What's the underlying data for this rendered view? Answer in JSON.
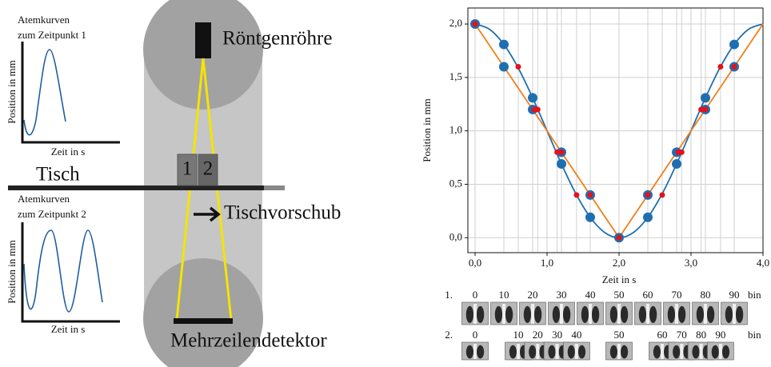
{
  "diagram": {
    "tube": "Röntgenröhre",
    "detector": "Mehrzeilendetektor",
    "table": "Tisch",
    "feed": "Tischvorschub",
    "slice1": "1",
    "slice2": "2",
    "plot1": {
      "title": [
        "Atemkurven",
        "zum Zeitpunkt 1"
      ],
      "ylabel": "Position in mm",
      "xlabel": "Zeit in s"
    },
    "plot2": {
      "title": [
        "Atemkurven",
        "zum Zeitpunkt 2"
      ],
      "ylabel": "Position in mm",
      "xlabel": "Zeit in s"
    }
  },
  "chart_data": {
    "type": "line",
    "xlabel": "Zeit in s",
    "ylabel": "Position in mm",
    "xlim": [
      -0.1,
      4.0
    ],
    "ylim": [
      -0.14,
      2.15
    ],
    "xticks": [
      {
        "value": 0,
        "label": "0,0"
      },
      {
        "value": 1,
        "label": "1,0"
      },
      {
        "value": 2,
        "label": "2,0"
      },
      {
        "value": 3,
        "label": "3,0"
      },
      {
        "value": 4,
        "label": "4,0"
      }
    ],
    "yticks": [
      {
        "value": 0,
        "label": "0,0"
      },
      {
        "value": 0.5,
        "label": "0,5"
      },
      {
        "value": 1,
        "label": "1,0"
      },
      {
        "value": 1.5,
        "label": "1,5"
      },
      {
        "value": 2,
        "label": "2,0"
      }
    ],
    "grid": true,
    "series": [
      {
        "kind": "curve",
        "color": "#1f6fb0",
        "x": [
          0,
          0.2,
          0.4,
          0.6,
          0.8,
          1.0,
          1.2,
          1.4,
          1.6,
          1.8,
          2.0,
          2.2,
          2.4,
          2.6,
          2.8,
          3.0,
          3.2,
          3.4,
          3.6,
          3.8,
          4.0
        ],
        "values": [
          2,
          1.951,
          1.809,
          1.588,
          1.309,
          1,
          0.691,
          0.412,
          0.191,
          0.049,
          0,
          0.049,
          0.191,
          0.412,
          0.691,
          1,
          1.309,
          1.588,
          1.809,
          1.951,
          2
        ]
      },
      {
        "kind": "line",
        "color": "#f07f1a",
        "x": [
          0,
          2,
          4
        ],
        "values": [
          2,
          0,
          2
        ]
      },
      {
        "kind": "points",
        "color": "#1f6fb0",
        "size": 6,
        "x": [
          0,
          0.4,
          0.8,
          1.2,
          1.6,
          2.0,
          2.4,
          2.8,
          3.2,
          3.6
        ],
        "values": [
          2,
          1.809,
          1.309,
          0.691,
          0.191,
          0,
          0.191,
          0.691,
          1.309,
          1.809
        ]
      },
      {
        "kind": "points",
        "color": "#1f6fb0",
        "size": 6,
        "x": [
          0.4,
          0.8,
          1.2,
          1.6,
          2.4,
          2.8,
          3.2,
          3.6
        ],
        "values": [
          1.6,
          1.2,
          0.8,
          0.4,
          0.4,
          0.8,
          1.2,
          1.6
        ]
      },
      {
        "kind": "points",
        "color": "#e8101a",
        "size": 3.5,
        "x": [
          0,
          0.6,
          0.87,
          1.14,
          1.41,
          2.0,
          2.6,
          2.87,
          3.14,
          3.41
        ],
        "values": [
          2,
          1.6,
          1.2,
          0.8,
          0.4,
          0,
          0.4,
          0.8,
          1.2,
          1.6
        ]
      },
      {
        "kind": "points",
        "color": "#e8101a",
        "size": 3.5,
        "x": [
          0.82,
          1.2,
          1.6,
          2.4,
          2.82,
          3.2,
          3.6
        ],
        "values": [
          1.2,
          0.8,
          0.4,
          0.4,
          0.8,
          1.2,
          1.6
        ]
      }
    ],
    "phases": {
      "unit": "bin",
      "rows": [
        {
          "label": "1.",
          "x": [
            0,
            0.4,
            0.8,
            1.2,
            1.6,
            2.0,
            2.4,
            2.8,
            3.2,
            3.6
          ],
          "bins": [
            0,
            10,
            20,
            30,
            40,
            50,
            60,
            70,
            80,
            90
          ]
        },
        {
          "label": "2.",
          "x": [
            0,
            0.6,
            0.87,
            1.14,
            1.41,
            2.0,
            2.6,
            2.87,
            3.14,
            3.41
          ],
          "bins": [
            0,
            10,
            20,
            30,
            40,
            50,
            60,
            70,
            80,
            90
          ]
        }
      ]
    }
  }
}
